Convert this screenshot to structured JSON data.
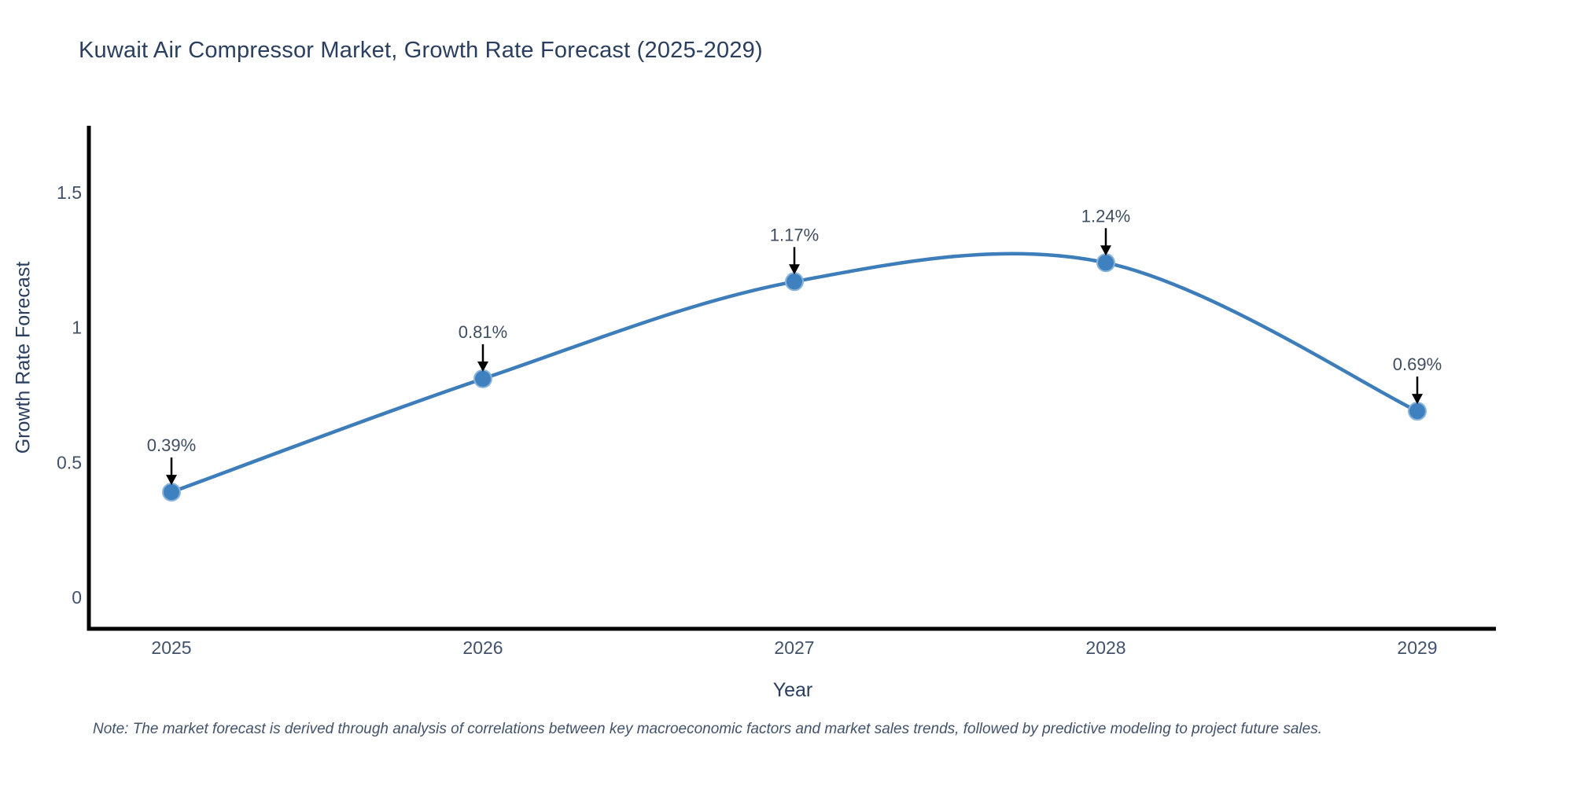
{
  "chart_data": {
    "type": "line",
    "title": "Kuwait Air Compressor Market, Growth Rate Forecast (2025-2029)",
    "xlabel": "Year",
    "ylabel": "Growth Rate Forecast",
    "x": [
      2025,
      2026,
      2027,
      2028,
      2029
    ],
    "values": [
      0.39,
      0.81,
      1.17,
      1.24,
      0.69
    ],
    "point_labels": [
      "0.39%",
      "0.81%",
      "1.17%",
      "1.24%",
      "0.69%"
    ],
    "ytick_values": [
      0,
      0.5,
      1,
      1.5
    ],
    "ytick_labels": [
      "0",
      "0.5",
      "1",
      "1.5"
    ],
    "ylim": [
      -0.12,
      1.87
    ],
    "line_shape": "spline",
    "grid": "off",
    "legend": "none",
    "annotations_style": "value label with downward arrow to each marker",
    "colors": {
      "line": "#3d7dba",
      "marker": "#3f80bf",
      "marker_edge": "#8ab4da",
      "axis": "#000000",
      "title_text": "#2a3f5f",
      "tick_text": "#42526b",
      "annotation_text": "#3f4d61",
      "arrow": "#000000"
    }
  },
  "note": {
    "text": "Note: The market forecast is derived through analysis of correlations between key macroeconomic factors and market sales trends, followed by predictive modeling to project future sales."
  }
}
